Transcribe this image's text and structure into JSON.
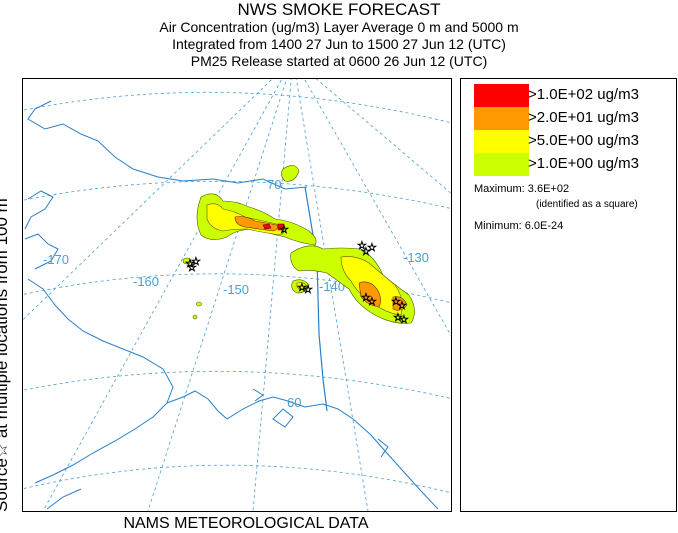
{
  "header": {
    "title": "NWS SMOKE FORECAST",
    "line1": "Air Concentration (ug/m3) Layer Average    0 m and  5000 m",
    "line2": "Integrated from 1400 27 Jun to 1500 27 Jun 12 (UTC)",
    "line3": "PM25 Release started at 0600 26 Jun 12 (UTC)"
  },
  "side_label": "Source☆ at multiple locations   from   100 m",
  "footer": "NAMS METEOROLOGICAL DATA",
  "map": {
    "longitude_labels": [
      "-170",
      "-160",
      "-150",
      "-140",
      "-130"
    ],
    "latitude_labels": [
      "70",
      "60"
    ],
    "colors": {
      "contour_1": "#ccff00",
      "contour_2": "#ffff00",
      "contour_3": "#ff9900",
      "contour_4": "#ff0000",
      "graticule": "#4a9fd4",
      "coast": "#2b7fc7"
    }
  },
  "legend": {
    "items": [
      {
        "label": ">1.0E+02 ug/m3",
        "color": "#ff0000"
      },
      {
        "label": ">2.0E+01 ug/m3",
        "color": "#ff9900"
      },
      {
        "label": ">5.0E+00 ug/m3",
        "color": "#ffff00"
      },
      {
        "label": ">1.0E+00 ug/m3",
        "color": "#ccff00"
      }
    ],
    "maximum": "Maximum: 3.6E+02",
    "maximum_note": "(identified as a square)",
    "minimum": "Minimum: 6.0E-24"
  }
}
